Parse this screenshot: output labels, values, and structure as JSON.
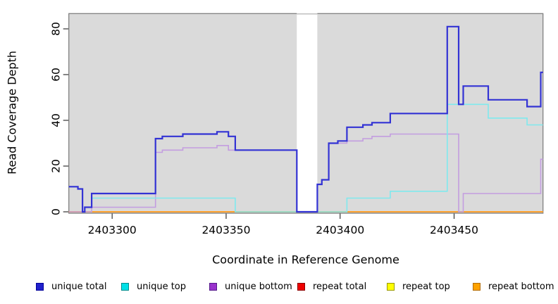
{
  "chart_data": {
    "type": "line",
    "subtype": "step-coverage",
    "title": "",
    "xlabel": "Coordinate in Reference Genome",
    "ylabel": "Read Coverage Depth",
    "xlim": [
      2403281,
      2403489
    ],
    "ylim": [
      0,
      86.7
    ],
    "x_ticks": [
      2403300,
      2403350,
      2403400,
      2403450
    ],
    "y_ticks": [
      0,
      20,
      40,
      60,
      80
    ],
    "grid": false,
    "panel_bg": "#dadada",
    "panel_border": "#808080",
    "gap_region": {
      "x_start": 2403381,
      "x_end": 2403390,
      "fill": "#ffffff",
      "cap_color": "#aaaaaa"
    },
    "legend_position": "bottom",
    "draw_order": [
      "repeat total",
      "repeat top",
      "repeat bottom",
      "unique bottom",
      "unique top",
      "unique total"
    ],
    "series": [
      {
        "name": "unique total",
        "color": "#3333d4",
        "legend_fill": "#2121cc",
        "legend_border": "#000099",
        "line_width": 2.2,
        "points": [
          [
            2403281,
            11
          ],
          [
            2403285,
            10
          ],
          [
            2403287,
            0
          ],
          [
            2403288,
            2
          ],
          [
            2403291,
            8
          ],
          [
            2403319,
            32
          ],
          [
            2403322,
            33
          ],
          [
            2403331,
            34
          ],
          [
            2403346,
            35
          ],
          [
            2403351,
            33
          ],
          [
            2403354,
            27
          ],
          [
            2403381,
            0
          ],
          [
            2403390,
            12
          ],
          [
            2403392,
            14
          ],
          [
            2403395,
            30
          ],
          [
            2403399,
            31
          ],
          [
            2403403,
            37
          ],
          [
            2403410,
            38
          ],
          [
            2403414,
            39
          ],
          [
            2403422,
            43
          ],
          [
            2403447,
            81
          ],
          [
            2403452,
            47
          ],
          [
            2403454,
            55
          ],
          [
            2403465,
            49
          ],
          [
            2403482,
            46
          ],
          [
            2403488,
            61
          ]
        ]
      },
      {
        "name": "unique top",
        "color": "#7fe9ee",
        "legend_fill": "#00e0e6",
        "legend_border": "#008b8b",
        "line_width": 1.6,
        "points": [
          [
            2403281,
            11
          ],
          [
            2403285,
            10
          ],
          [
            2403287,
            0
          ],
          [
            2403288,
            2
          ],
          [
            2403291,
            6
          ],
          [
            2403354,
            0
          ],
          [
            2403403,
            6
          ],
          [
            2403422,
            9
          ],
          [
            2403447,
            47
          ],
          [
            2403465,
            41
          ],
          [
            2403482,
            38
          ]
        ]
      },
      {
        "name": "unique bottom",
        "color": "#c39de0",
        "legend_fill": "#9932cc",
        "legend_border": "#551a8b",
        "line_width": 1.6,
        "points": [
          [
            2403281,
            0
          ],
          [
            2403291,
            2
          ],
          [
            2403319,
            26
          ],
          [
            2403322,
            27
          ],
          [
            2403331,
            28
          ],
          [
            2403346,
            29
          ],
          [
            2403351,
            27
          ],
          [
            2403381,
            0
          ],
          [
            2403390,
            12
          ],
          [
            2403392,
            14
          ],
          [
            2403395,
            30
          ],
          [
            2403403,
            31
          ],
          [
            2403410,
            32
          ],
          [
            2403414,
            33
          ],
          [
            2403422,
            34
          ],
          [
            2403452,
            0
          ],
          [
            2403454,
            8
          ],
          [
            2403488,
            23
          ]
        ]
      },
      {
        "name": "repeat total",
        "color": "#dd2222",
        "legend_fill": "#ee0000",
        "legend_border": "#8b0000",
        "line_width": 1.4,
        "points": [
          [
            2403281,
            0
          ]
        ]
      },
      {
        "name": "repeat top",
        "color": "#ffff55",
        "legend_fill": "#ffff00",
        "legend_border": "#999900",
        "line_width": 1.4,
        "points": [
          [
            2403281,
            0
          ]
        ]
      },
      {
        "name": "repeat bottom",
        "color": "#ff9d24",
        "legend_fill": "#ffa200",
        "legend_border": "#b36b00",
        "line_width": 1.8,
        "points": [
          [
            2403281,
            0
          ]
        ]
      }
    ]
  }
}
